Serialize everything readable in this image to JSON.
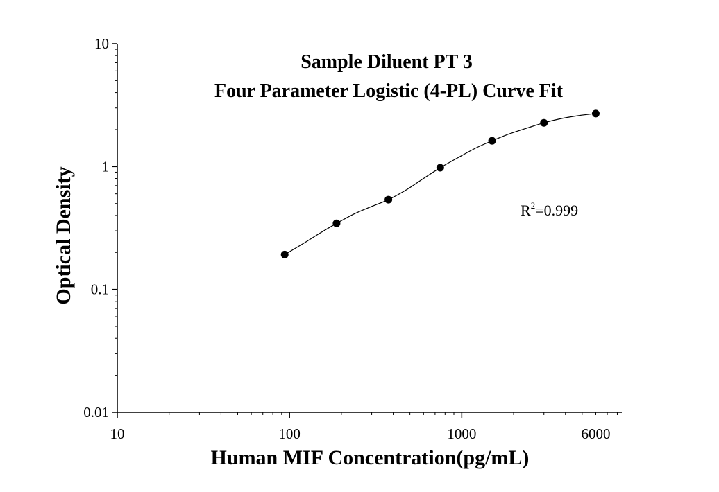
{
  "chart_data": {
    "type": "scatter",
    "title": "Sample Diluent PT 3",
    "subtitle": "Four Parameter Logistic (4-PL) Curve Fit",
    "xlabel": "Human MIF Concentration(pg/mL)",
    "ylabel": "Optical Density",
    "x_scale": "log",
    "y_scale": "log",
    "xlim": [
      10,
      8500
    ],
    "ylim": [
      0.01,
      10
    ],
    "x_ticks": [
      {
        "value": 10,
        "label": "10"
      },
      {
        "value": 100,
        "label": "100"
      },
      {
        "value": 1000,
        "label": "1000"
      },
      {
        "value": 6000,
        "label": "6000"
      }
    ],
    "y_ticks": [
      {
        "value": 10,
        "label": "10"
      },
      {
        "value": 1,
        "label": "1"
      },
      {
        "value": 0.1,
        "label": "0.1"
      },
      {
        "value": 0.01,
        "label": "0.01"
      }
    ],
    "grid": false,
    "legend": "none",
    "series": [
      {
        "x": [
          93.75,
          187.5,
          375,
          750,
          1500,
          3000,
          6000
        ],
        "y": [
          0.192,
          0.345,
          0.538,
          0.978,
          1.62,
          2.27,
          2.7
        ]
      }
    ],
    "fit_curve": {
      "model": "4-PL",
      "x": [
        93.75,
        120,
        150,
        187.5,
        240,
        300,
        375,
        480,
        600,
        750,
        950,
        1200,
        1500,
        1900,
        2400,
        3000,
        3800,
        4800,
        6000
      ],
      "y": [
        0.192,
        0.236,
        0.287,
        0.345,
        0.415,
        0.474,
        0.538,
        0.65,
        0.8,
        0.978,
        1.18,
        1.41,
        1.62,
        1.85,
        2.06,
        2.27,
        2.46,
        2.6,
        2.7
      ]
    },
    "annotations": [
      {
        "text_base": "R",
        "text_sup": "2",
        "text_rest": "=0.999"
      }
    ],
    "colors": {
      "marker": "#000000",
      "line": "#000000",
      "axis": "#000000"
    }
  }
}
